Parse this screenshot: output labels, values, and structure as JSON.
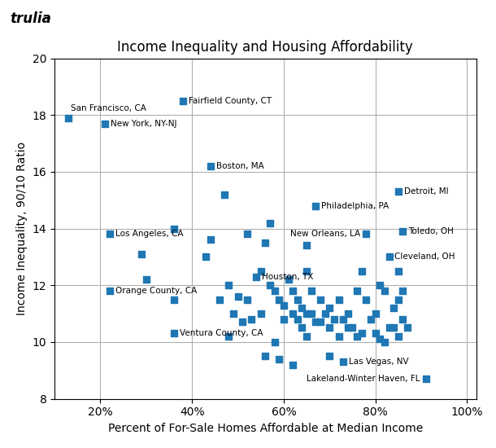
{
  "chart_data": {
    "type": "scatter",
    "title": "Income Inequality and Housing Affordability",
    "subtitle": "trulia",
    "x_label": "Percent of For-Sale Homes Affordable at Median Income",
    "y_label": "Income Inequality, 90/10 Ratio",
    "marker": "square",
    "x": [
      0.47,
      0.36,
      0.44,
      0.29,
      0.52,
      0.57,
      0.56,
      0.3,
      0.36,
      0.43,
      0.48,
      0.5,
      0.52,
      0.55,
      0.57,
      0.58,
      0.59,
      0.6,
      0.6,
      0.61,
      0.62,
      0.62,
      0.63,
      0.63,
      0.64,
      0.64,
      0.65,
      0.65,
      0.65,
      0.65,
      0.66,
      0.66,
      0.67,
      0.68,
      0.68,
      0.69,
      0.7,
      0.7,
      0.7,
      0.71,
      0.72,
      0.72,
      0.73,
      0.74,
      0.74,
      0.75,
      0.76,
      0.76,
      0.77,
      0.77,
      0.78,
      0.79,
      0.8,
      0.8,
      0.81,
      0.81,
      0.82,
      0.82,
      0.83,
      0.84,
      0.84,
      0.85,
      0.85,
      0.85,
      0.86,
      0.86,
      0.87,
      0.56,
      0.59,
      0.62,
      0.58,
      0.55,
      0.53,
      0.51,
      0.49,
      0.46,
      0.48,
      0.13,
      0.21,
      0.38,
      0.44,
      0.22,
      0.22,
      0.36,
      0.54,
      0.67,
      0.85,
      0.86,
      0.78,
      0.83,
      0.73,
      0.91
    ],
    "values": [
      15.2,
      14.0,
      13.6,
      13.1,
      13.8,
      14.2,
      13.5,
      12.2,
      11.5,
      13.0,
      12.0,
      11.6,
      11.5,
      12.5,
      12.0,
      11.8,
      11.5,
      11.3,
      10.8,
      12.2,
      11.8,
      11.0,
      10.8,
      11.5,
      11.2,
      10.5,
      13.4,
      12.5,
      11.0,
      10.2,
      11.8,
      11.0,
      10.7,
      11.5,
      10.7,
      11.0,
      9.5,
      10.5,
      11.2,
      10.8,
      11.5,
      10.2,
      10.8,
      11.0,
      10.5,
      10.5,
      11.8,
      10.2,
      12.5,
      10.3,
      11.5,
      10.8,
      10.3,
      11.0,
      12.0,
      10.1,
      11.8,
      10.0,
      10.5,
      11.2,
      10.5,
      12.5,
      11.5,
      10.2,
      11.8,
      10.8,
      10.5,
      9.5,
      9.4,
      9.2,
      10.0,
      11.0,
      10.8,
      10.7,
      11.0,
      11.5,
      10.2,
      17.9,
      17.7,
      18.5,
      16.2,
      13.8,
      11.8,
      10.3,
      12.3,
      14.8,
      15.3,
      13.9,
      13.8,
      13.0,
      9.3,
      8.7
    ],
    "point_labels": [
      null,
      null,
      null,
      null,
      null,
      null,
      null,
      null,
      null,
      null,
      null,
      null,
      null,
      null,
      null,
      null,
      null,
      null,
      null,
      null,
      null,
      null,
      null,
      null,
      null,
      null,
      null,
      null,
      null,
      null,
      null,
      null,
      null,
      null,
      null,
      null,
      null,
      null,
      null,
      null,
      null,
      null,
      null,
      null,
      null,
      null,
      null,
      null,
      null,
      null,
      null,
      null,
      null,
      null,
      null,
      null,
      null,
      null,
      null,
      null,
      null,
      null,
      null,
      null,
      null,
      null,
      null,
      null,
      null,
      null,
      null,
      null,
      null,
      null,
      null,
      null,
      null,
      "San Francisco, CA",
      "New York, NY-NJ",
      "Fairfield County, CT",
      "Boston, MA",
      "Los Angeles, CA",
      "Orange County, CA",
      "Ventura County, CA",
      "Houston, TX",
      "Philadelphia, PA",
      "Detroit, MI",
      "Toledo, OH",
      "New Orleans, LA",
      "Cleveland, OH",
      "Las Vegas, NV",
      "Lakeland-Winter Haven, FL"
    ],
    "xlim": [
      0.1,
      1.02
    ],
    "ylim": [
      8,
      20
    ],
    "xticks": [
      {
        "value": 0.2,
        "label": "20%"
      },
      {
        "value": 0.4,
        "label": "40%"
      },
      {
        "value": 0.6,
        "label": "60%"
      },
      {
        "value": 0.8,
        "label": "80%"
      },
      {
        "value": 1.0,
        "label": "100%"
      }
    ],
    "yticks": [
      8,
      10,
      12,
      14,
      16,
      18,
      20
    ],
    "grid": true
  }
}
